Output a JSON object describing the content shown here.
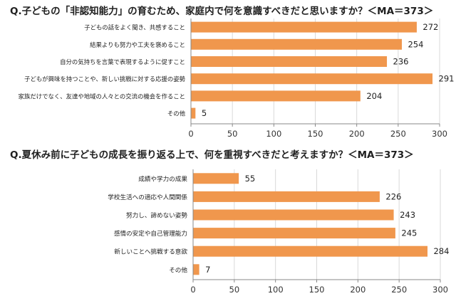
{
  "chart_data": [
    {
      "type": "bar",
      "orientation": "horizontal",
      "title": "Q.子どもの「非認知能力」の育むため、家庭内で何を意識すべきだと思いますか？＜MA＝373＞",
      "categories": [
        "子どもの話をよく聞き、共感すること",
        "結果よりも努力や工夫を褒めること",
        "自分の気持ちを言葉で表現するように促すこと",
        "子どもが興味を持つことや、新しい挑戦に対する応援の姿勢",
        "家族だけでなく、友達や地域の人々との交流の機会を作ること",
        "その他"
      ],
      "values": [
        272,
        254,
        236,
        291,
        204,
        5
      ],
      "xlim": [
        0,
        300
      ],
      "xticks": [
        0,
        50,
        100,
        150,
        200,
        250,
        300
      ],
      "grid": true,
      "legend": "none"
    },
    {
      "type": "bar",
      "orientation": "horizontal",
      "title": "Q.夏休み前に子どもの成長を振り返る上で、何を重視すべきだと考えますか？＜MA＝373＞",
      "categories": [
        "成績や学力の成果",
        "学校生活への適応や人間関係",
        "努力し、諦めない姿勢",
        "感情の安定や自己管理能力",
        "新しいことへ挑戦する意欲",
        "その他"
      ],
      "values": [
        55,
        226,
        243,
        245,
        284,
        7
      ],
      "xlim": [
        0,
        300
      ],
      "xticks": [
        0,
        50,
        100,
        150,
        200,
        250,
        300
      ],
      "grid": true,
      "legend": "none"
    }
  ],
  "colors": {
    "bar": "#f0974d",
    "grid": "#d9d9d9",
    "axis": "#888888"
  }
}
